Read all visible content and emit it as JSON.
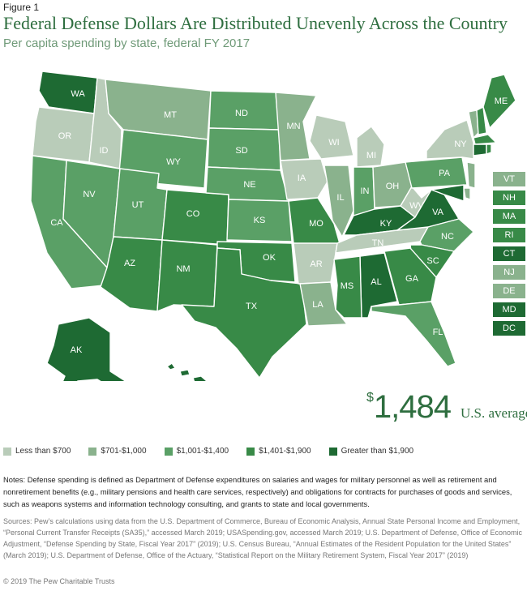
{
  "figure_label": "Figure 1",
  "title": "Federal Defense Dollars Are Distributed Unevenly Across the Country",
  "subtitle": "Per capita spending by state, federal FY 2017",
  "colors": {
    "c1": "#b9ccb9",
    "c2": "#8ab28d",
    "c3": "#5aa066",
    "c4": "#388a47",
    "c5": "#1e6a33"
  },
  "legend": [
    {
      "label": "Less than $700",
      "color": "#b9ccb9"
    },
    {
      "label": "$701-$1,000",
      "color": "#8ab28d"
    },
    {
      "label": "$1,001-$1,400",
      "color": "#5aa066"
    },
    {
      "label": "$1,401-$1,900",
      "color": "#388a47"
    },
    {
      "label": "Greater than $1,900",
      "color": "#1e6a33"
    }
  ],
  "states": [
    {
      "code": "WA",
      "tier": 5
    },
    {
      "code": "OR",
      "tier": 1
    },
    {
      "code": "ID",
      "tier": 1
    },
    {
      "code": "MT",
      "tier": 2
    },
    {
      "code": "WY",
      "tier": 3
    },
    {
      "code": "CA",
      "tier": 3
    },
    {
      "code": "NV",
      "tier": 3
    },
    {
      "code": "UT",
      "tier": 3
    },
    {
      "code": "AZ",
      "tier": 4
    },
    {
      "code": "CO",
      "tier": 4
    },
    {
      "code": "NM",
      "tier": 4
    },
    {
      "code": "ND",
      "tier": 3
    },
    {
      "code": "SD",
      "tier": 3
    },
    {
      "code": "NE",
      "tier": 3
    },
    {
      "code": "KS",
      "tier": 3
    },
    {
      "code": "OK",
      "tier": 4
    },
    {
      "code": "TX",
      "tier": 4
    },
    {
      "code": "MN",
      "tier": 2
    },
    {
      "code": "IA",
      "tier": 1
    },
    {
      "code": "MO",
      "tier": 4
    },
    {
      "code": "AR",
      "tier": 1
    },
    {
      "code": "LA",
      "tier": 2
    },
    {
      "code": "WI",
      "tier": 1
    },
    {
      "code": "IL",
      "tier": 2
    },
    {
      "code": "MI",
      "tier": 1
    },
    {
      "code": "IN",
      "tier": 3
    },
    {
      "code": "OH",
      "tier": 2
    },
    {
      "code": "KY",
      "tier": 5
    },
    {
      "code": "TN",
      "tier": 1
    },
    {
      "code": "MS",
      "tier": 4
    },
    {
      "code": "AL",
      "tier": 5
    },
    {
      "code": "GA",
      "tier": 4
    },
    {
      "code": "FL",
      "tier": 3
    },
    {
      "code": "SC",
      "tier": 4
    },
    {
      "code": "NC",
      "tier": 3
    },
    {
      "code": "VA",
      "tier": 5
    },
    {
      "code": "WV",
      "tier": 1
    },
    {
      "code": "PA",
      "tier": 3
    },
    {
      "code": "NY",
      "tier": 1
    },
    {
      "code": "ME",
      "tier": 4
    },
    {
      "code": "AK",
      "tier": 5
    },
    {
      "code": "HI",
      "tier": 5
    }
  ],
  "small_states": [
    {
      "code": "VT",
      "tier": 2
    },
    {
      "code": "NH",
      "tier": 4
    },
    {
      "code": "MA",
      "tier": 4
    },
    {
      "code": "RI",
      "tier": 4
    },
    {
      "code": "CT",
      "tier": 5
    },
    {
      "code": "NJ",
      "tier": 2
    },
    {
      "code": "DE",
      "tier": 2
    },
    {
      "code": "MD",
      "tier": 5
    },
    {
      "code": "DC",
      "tier": 5
    }
  ],
  "average": {
    "dollar_sign": "$",
    "value": "1,484",
    "label": "U.S. average"
  },
  "notes": "Notes: Defense spending is defined as Department of Defense expenditures on salaries and wages for military personnel as well as retirement and nonretirement benefits (e.g., military pensions and health care services, respectively) and obligations for contracts for purchases of goods and services, such as weapons systems and information technology consulting, and grants to state and local governments.",
  "sources": "Sources: Pew’s calculations using data from the U.S. Department of Commerce, Bureau of Economic Analysis, Annual State Personal Income and Employment, “Personal Current Transfer Receipts (SA35),” accessed March 2019;  USASpending.gov, accessed March 2019; U.S. Department of Defense, Office of Economic Adjustment, “Defense Spending by State, Fiscal Year 2017” (2019); U.S. Census Bureau, “Annual Estimates of the Resident Population for the United States” (March 2019);  U.S. Department of Defense, Office of the Actuary, “Statistical Report on the Military Retirement System, Fiscal Year 2017” (2019)",
  "copyright": "© 2019 The Pew Charitable Trusts"
}
